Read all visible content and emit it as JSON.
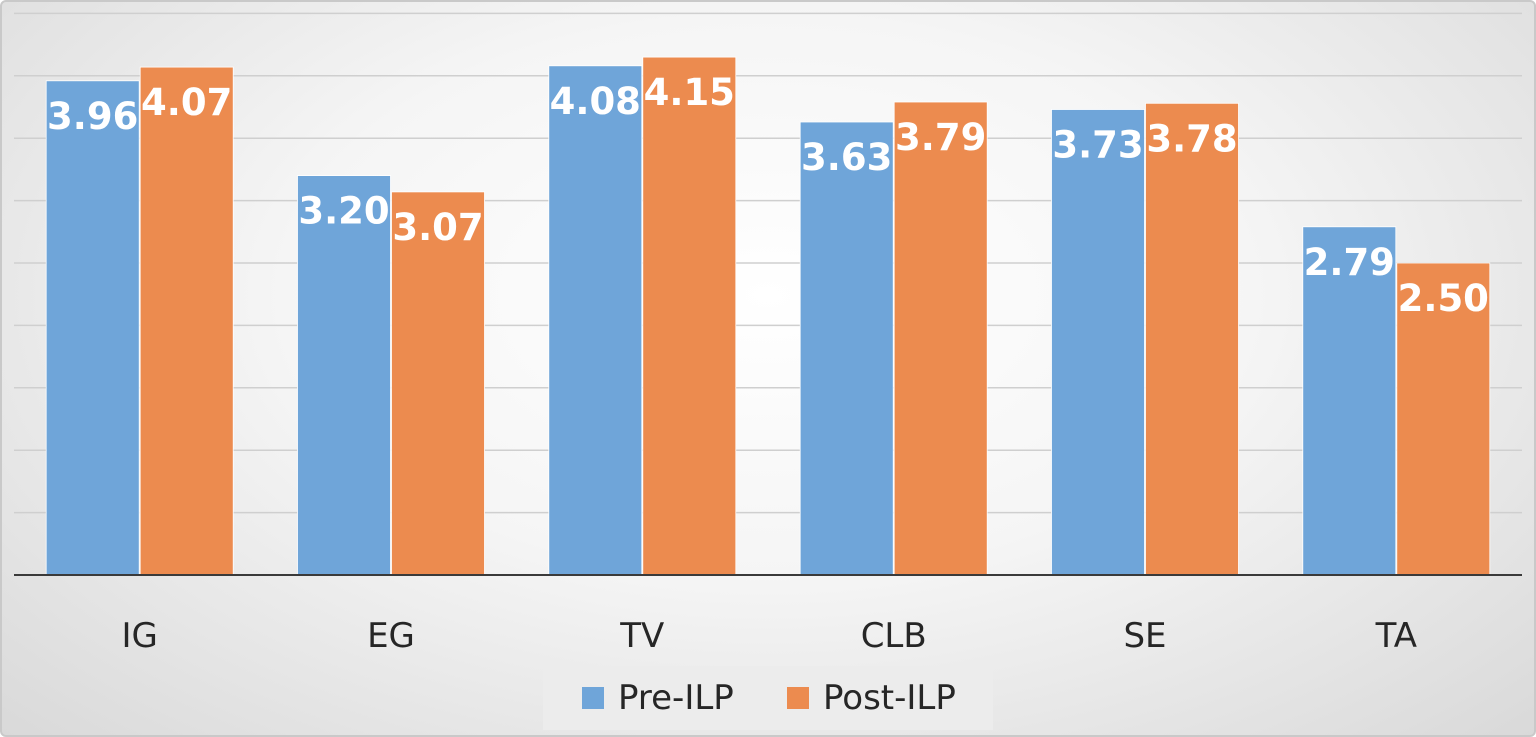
{
  "chart_data": {
    "type": "bar",
    "categories": [
      "IG",
      "EG",
      "TV",
      "CLB",
      "SE",
      "TA"
    ],
    "series": [
      {
        "name": "Pre-ILP",
        "values": [
          3.96,
          3.2,
          4.08,
          3.63,
          3.73,
          2.79
        ],
        "color": "#6fa5d9"
      },
      {
        "name": "Post-ILP",
        "values": [
          4.07,
          3.07,
          4.15,
          3.79,
          3.78,
          2.5
        ],
        "color": "#ec8b4f"
      }
    ],
    "value_labels": [
      [
        "3.96",
        "3.20",
        "4.08",
        "3.63",
        "3.73",
        "2.79"
      ],
      [
        "4.07",
        "3.07",
        "4.15",
        "3.79",
        "3.78",
        "2.50"
      ]
    ],
    "ylim": [
      0,
      4.5
    ],
    "gridlines": true,
    "legend_position": "bottom",
    "title": "",
    "xlabel": "",
    "ylabel": ""
  }
}
